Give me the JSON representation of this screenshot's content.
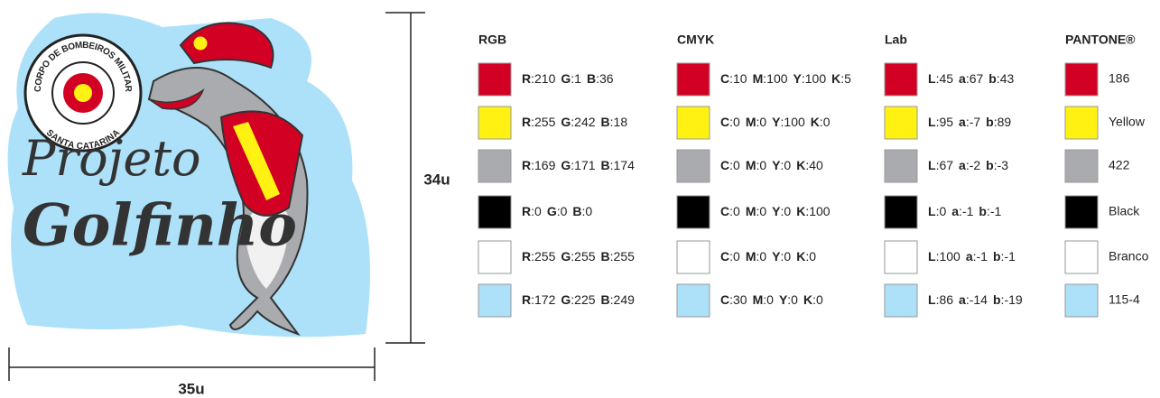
{
  "logo": {
    "badge_top": "CORPO DE BOMBEIROS MILITAR",
    "badge_bottom": "SANTA CATARINA",
    "line1": "Projeto",
    "line2": "Golfinho"
  },
  "dimensions": {
    "height": "34u",
    "width": "35u"
  },
  "palette": {
    "colors": [
      "#d20124",
      "#fff212",
      "#a9abae",
      "#000000",
      "#ffffff",
      "#ace1f9"
    ],
    "columns": [
      {
        "title": "RGB",
        "entries": [
          [
            [
              "R",
              ":210"
            ],
            [
              "G",
              ":1"
            ],
            [
              "B",
              ":36"
            ]
          ],
          [
            [
              "R",
              ":255"
            ],
            [
              "G",
              ":242"
            ],
            [
              "B",
              ":18"
            ]
          ],
          [
            [
              "R",
              ":169"
            ],
            [
              "G",
              ":171"
            ],
            [
              "B",
              ":174"
            ]
          ],
          [
            [
              "R",
              ":0"
            ],
            [
              "G",
              ":0"
            ],
            [
              "B",
              ":0"
            ]
          ],
          [
            [
              "R",
              ":255"
            ],
            [
              "G",
              ":255"
            ],
            [
              "B",
              ":255"
            ]
          ],
          [
            [
              "R",
              ":172"
            ],
            [
              "G",
              ":225"
            ],
            [
              "B",
              ":249"
            ]
          ]
        ]
      },
      {
        "title": "CMYK",
        "entries": [
          [
            [
              "C",
              ":10"
            ],
            [
              "M",
              ":100"
            ],
            [
              "Y",
              ":100"
            ],
            [
              "K",
              ":5"
            ]
          ],
          [
            [
              "C",
              ":0"
            ],
            [
              "M",
              ":0"
            ],
            [
              "Y",
              ":100"
            ],
            [
              "K",
              ":0"
            ]
          ],
          [
            [
              "C",
              ":0"
            ],
            [
              "M",
              ":0"
            ],
            [
              "Y",
              ":0"
            ],
            [
              "K",
              ":40"
            ]
          ],
          [
            [
              "C",
              ":0"
            ],
            [
              "M",
              ":0"
            ],
            [
              "Y",
              ":0"
            ],
            [
              "K",
              ":100"
            ]
          ],
          [
            [
              "C",
              ":0"
            ],
            [
              "M",
              ":0"
            ],
            [
              "Y",
              ":0"
            ],
            [
              "K",
              ":0"
            ]
          ],
          [
            [
              "C",
              ":30"
            ],
            [
              "M",
              ":0"
            ],
            [
              "Y",
              ":0"
            ],
            [
              "K",
              ":0"
            ]
          ]
        ]
      },
      {
        "title": "Lab",
        "entries": [
          [
            [
              "L",
              ":45"
            ],
            [
              "a",
              ":67"
            ],
            [
              "b",
              ":43"
            ]
          ],
          [
            [
              "L",
              ":95"
            ],
            [
              "a",
              ":-7"
            ],
            [
              "b",
              ":89"
            ]
          ],
          [
            [
              "L",
              ":67"
            ],
            [
              "a",
              ":-2"
            ],
            [
              "b",
              ":-3"
            ]
          ],
          [
            [
              "L",
              ":0"
            ],
            [
              "a",
              ":-1"
            ],
            [
              "b",
              ":-1"
            ]
          ],
          [
            [
              "L",
              ":100"
            ],
            [
              "a",
              ":-1"
            ],
            [
              "b",
              ":-1"
            ]
          ],
          [
            [
              "L",
              ":86"
            ],
            [
              "a",
              ":-14"
            ],
            [
              "b",
              ":-19"
            ]
          ]
        ]
      },
      {
        "title": "PANTONE®",
        "entries": [
          "186",
          "Yellow",
          "422",
          "Black",
          "Branco",
          "115-4"
        ]
      }
    ]
  }
}
